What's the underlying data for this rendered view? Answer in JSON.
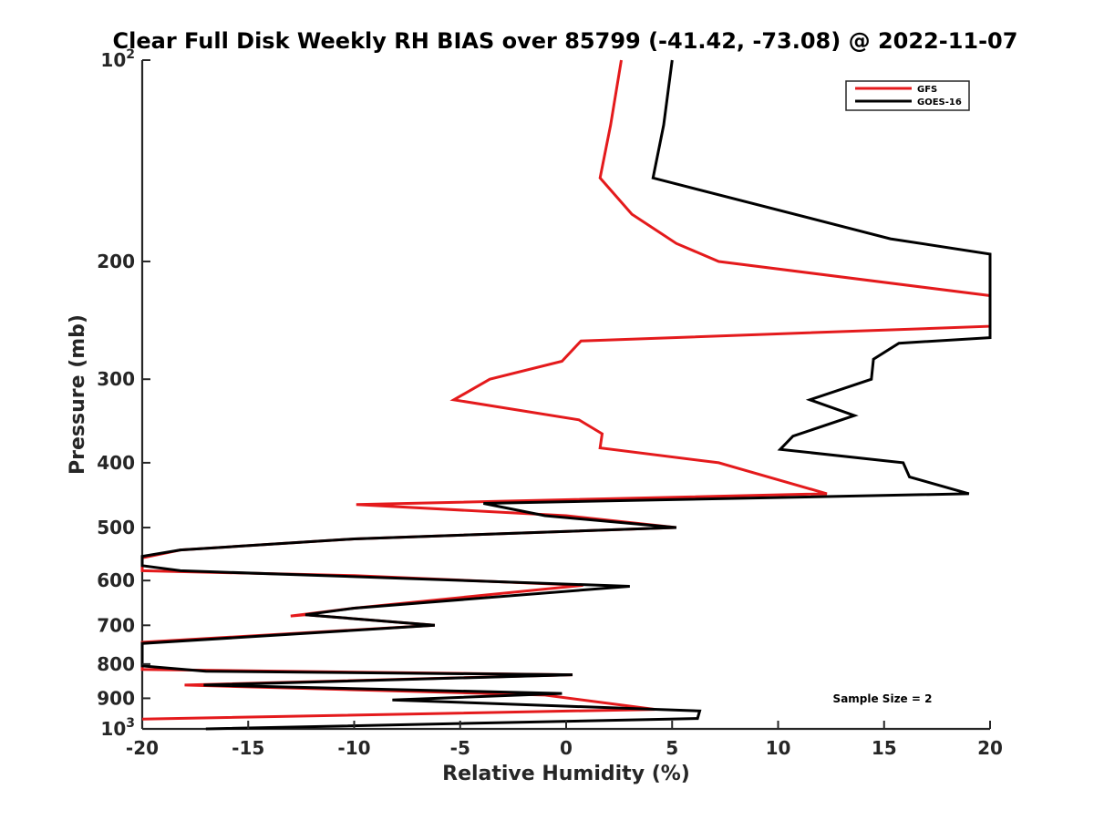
{
  "chart_data": {
    "type": "line",
    "title": "Clear Full Disk Weekly RH BIAS over 85799 (-41.42, -73.08) @ 2022-11-07",
    "xlabel": "Relative Humidity (%)",
    "ylabel": "Pressure (mb)",
    "xlim": [
      -20,
      20
    ],
    "ylim": [
      1000,
      100
    ],
    "yscale": "log",
    "xticks": [
      -20,
      -15,
      -10,
      -5,
      0,
      5,
      10,
      15,
      20
    ],
    "xtick_labels": [
      "-20",
      "-15",
      "-10",
      "-5",
      "0",
      "5",
      "10",
      "15",
      "20"
    ],
    "yticks": [
      100,
      200,
      300,
      400,
      500,
      600,
      700,
      800,
      900,
      1000
    ],
    "ytick_labels": [
      {
        "base": "10",
        "exp": "2"
      },
      {
        "base": "200",
        "exp": ""
      },
      {
        "base": "300",
        "exp": ""
      },
      {
        "base": "400",
        "exp": ""
      },
      {
        "base": "500",
        "exp": ""
      },
      {
        "base": "600",
        "exp": ""
      },
      {
        "base": "700",
        "exp": ""
      },
      {
        "base": "800",
        "exp": ""
      },
      {
        "base": "900",
        "exp": ""
      },
      {
        "base": "10",
        "exp": "3"
      }
    ],
    "grid": false,
    "legend_position": "top-right",
    "annotation": "Sample Size = 2",
    "series": [
      {
        "name": "GFS",
        "color": "#e41a1c",
        "points": [
          [
            2.6,
            100
          ],
          [
            2.1,
            125
          ],
          [
            1.6,
            150
          ],
          [
            3.1,
            170
          ],
          [
            5.2,
            188
          ],
          [
            7.2,
            200
          ],
          [
            20,
            225
          ],
          [
            20,
            250
          ],
          [
            0.7,
            263
          ],
          [
            -0.2,
            282
          ],
          [
            -3.6,
            300
          ],
          [
            -5.3,
            322
          ],
          [
            0.6,
            345
          ],
          [
            1.7,
            362
          ],
          [
            1.6,
            380
          ],
          [
            7.2,
            400
          ],
          [
            12.3,
            445
          ],
          [
            -9.9,
            462
          ],
          [
            0,
            480
          ],
          [
            5.2,
            500
          ],
          [
            -10,
            520
          ],
          [
            -18.2,
            540
          ],
          [
            -20,
            555
          ],
          [
            -20,
            580
          ],
          [
            -10,
            590
          ],
          [
            0.8,
            610
          ],
          [
            -10,
            660
          ],
          [
            -13,
            678
          ],
          [
            -12.3,
            675
          ],
          [
            -6.2,
            700
          ],
          [
            -20,
            742
          ],
          [
            -20,
            815
          ],
          [
            0.3,
            830
          ],
          [
            -18,
            860
          ],
          [
            -1,
            890
          ],
          [
            4.2,
            935
          ],
          [
            -20,
            967
          ]
        ]
      },
      {
        "name": "GOES-16",
        "color": "#000000",
        "points": [
          [
            5,
            100
          ],
          [
            4.6,
            125
          ],
          [
            4.1,
            150
          ],
          [
            15.3,
            185
          ],
          [
            20,
            195
          ],
          [
            20,
            260
          ],
          [
            15.7,
            265
          ],
          [
            14.5,
            280
          ],
          [
            14.4,
            300
          ],
          [
            11.5,
            322
          ],
          [
            13.6,
            340
          ],
          [
            10.7,
            365
          ],
          [
            10.1,
            382
          ],
          [
            15.9,
            400
          ],
          [
            16.2,
            420
          ],
          [
            19,
            445
          ],
          [
            -3.9,
            460
          ],
          [
            -1,
            480
          ],
          [
            5.2,
            500
          ],
          [
            -10,
            520
          ],
          [
            -18.2,
            540
          ],
          [
            -20,
            552
          ],
          [
            -20,
            570
          ],
          [
            -18.2,
            580
          ],
          [
            -10,
            592
          ],
          [
            3,
            612
          ],
          [
            -10,
            660
          ],
          [
            -12.3,
            675
          ],
          [
            -6.2,
            700
          ],
          [
            -20,
            745
          ],
          [
            -20,
            805
          ],
          [
            -17,
            820
          ],
          [
            0.3,
            830
          ],
          [
            -17.1,
            860
          ],
          [
            -0.2,
            885
          ],
          [
            -8.2,
            905
          ],
          [
            6.3,
            940
          ],
          [
            6.2,
            965
          ],
          [
            -17,
            1000
          ]
        ]
      }
    ]
  }
}
